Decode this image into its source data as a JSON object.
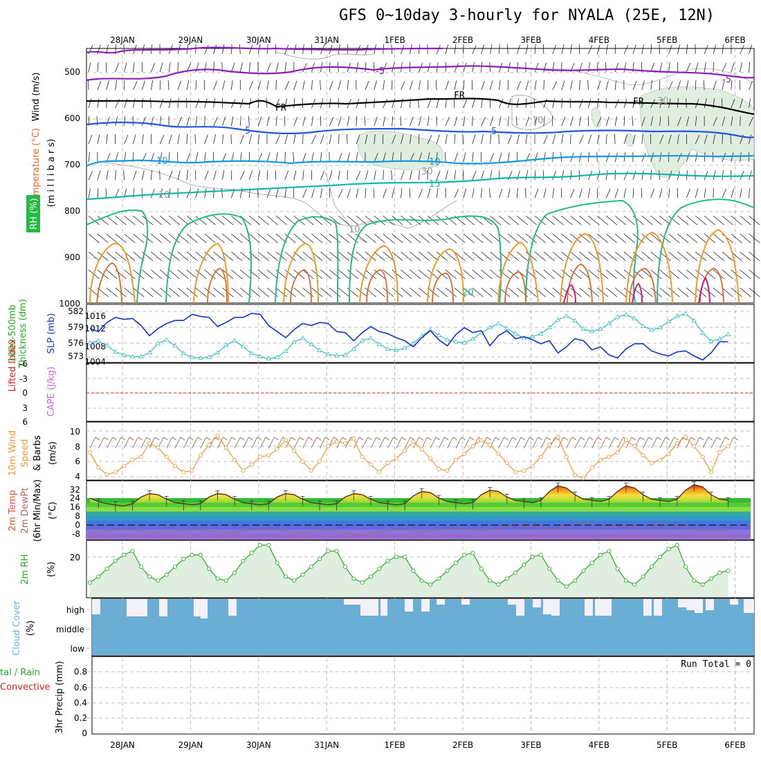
{
  "title": "GFS 0~10day 3-hourly for NYALA (25E, 12N)",
  "colors": {
    "temp_purple": "#8b1fb5",
    "temp_black": "#000000",
    "temp_blue": "#2255dd",
    "temp_lightblue": "#1199dd",
    "temp_teal": "#11b7a5",
    "temp_green": "#22bb88",
    "temp_orange": "#ee9922",
    "temp_darkorange": "#e06622",
    "temp_magenta": "#dd1177",
    "rh_fill": "#dfeedf",
    "thickness_line": "#1133cc",
    "slp_line": "#33bbbb",
    "wind_line": "#ee9933",
    "rh_line": "#22aa22",
    "cloud": "#6aaed6",
    "zero_line": "#dd2222"
  },
  "axes": {
    "dates": [
      "28JAN",
      "29JAN",
      "30JAN",
      "31JAN",
      "1FEB",
      "2FEB",
      "3FEB",
      "4FEB",
      "5FEB",
      "6FEB"
    ]
  },
  "panels": {
    "upper": {
      "y_label_wind": "Wind (m/s)",
      "y_label_temp": "Temperature (°C)",
      "y_label_rh": "RH (%)",
      "y_label_unit": "(m i l l i b a r s)",
      "y_ticks": [
        "500",
        "600",
        "700",
        "800",
        "900",
        "1000"
      ],
      "contour_labels": [
        "-5",
        "FR",
        "FR",
        "FR",
        "5",
        "5",
        "10",
        "10",
        "15",
        "20",
        "-5",
        "10",
        "30",
        "10",
        "30",
        "10"
      ]
    },
    "thickness": {
      "label_a": "1000-500mb",
      "label_b": "Thickness (dm)",
      "label_c": "SLP (mb)",
      "ticks_left": [
        "582",
        "579",
        "576",
        "573"
      ],
      "ticks_right": [
        "1016",
        "1012",
        "1008",
        "1004"
      ]
    },
    "cape": {
      "label_a": "Lifted Index",
      "label_b": "CAPE (J/kg)",
      "ticks": [
        "-6",
        "-3",
        "0",
        "3",
        "6"
      ]
    },
    "wind10m": {
      "label_a": "10m Wind",
      "label_b": "Speed",
      "label_c": "& Barbs",
      "label_unit": "(m/s)",
      "ticks": [
        "10",
        "8",
        "6",
        "4"
      ]
    },
    "temp2m": {
      "label_a": "2m Temp",
      "label_b": "2m DewPt",
      "label_c": "(6hr Min/Max)",
      "label_unit": "(°C)",
      "ticks": [
        "32",
        "24",
        "16",
        "8",
        "0",
        "-8"
      ]
    },
    "rh2m": {
      "label_a": "2m RH",
      "label_unit": "(%)",
      "ticks": [
        "20"
      ]
    },
    "cloud": {
      "label_a": "Cloud Cover",
      "label_unit": "(%)",
      "levels": [
        "high",
        "middle",
        "low"
      ]
    },
    "precip": {
      "label_a": "tal / Rain",
      "label_b": "Convective",
      "label_c": "3hr Precip (mm)",
      "run_total": "Run Total = 0",
      "ticks": [
        "0.8",
        "0.6",
        "0.4",
        "0.2",
        "0"
      ]
    }
  },
  "chart_data": [
    {
      "type": "line",
      "name": "thickness",
      "ylabel": "Thickness (dm)",
      "ylim": [
        571,
        583
      ],
      "x_days": [
        0.0,
        0.125,
        0.25,
        0.375,
        0.5,
        0.625,
        0.75,
        0.875,
        1.0,
        1.125,
        1.25,
        1.375,
        1.5,
        1.625,
        1.75,
        1.875,
        2.0,
        2.125,
        2.25,
        2.375,
        2.5,
        2.625,
        2.75,
        2.875,
        3.0,
        3.125,
        3.25,
        3.375,
        3.5,
        3.625,
        3.75,
        3.875,
        4.0,
        4.125,
        4.25,
        4.375,
        4.5,
        4.625,
        4.75,
        4.875,
        5.0,
        5.125,
        5.25,
        5.375,
        5.5,
        5.625,
        5.75,
        5.875,
        6.0,
        6.125,
        6.25,
        6.375,
        6.5,
        6.625,
        6.75,
        6.875,
        7.0,
        7.125,
        7.25,
        7.375,
        7.5,
        7.625,
        7.75,
        7.875,
        8.0,
        8.125,
        8.25,
        8.375,
        8.5,
        8.625,
        8.75,
        8.875,
        9.0,
        9.125,
        9.25,
        9.375
      ],
      "values": [
        578.6,
        578.0,
        579.8,
        580.8,
        580.4,
        580.6,
        579.2,
        577.2,
        578.6,
        579.6,
        580.2,
        580.2,
        581.4,
        581.0,
        580.8,
        579.0,
        579.8,
        580.8,
        580.8,
        581.6,
        581.4,
        579.2,
        578.0,
        576.8,
        578.4,
        579.6,
        579.2,
        579.8,
        579.6,
        578.0,
        577.8,
        576.2,
        577.8,
        579.0,
        578.0,
        577.6,
        576.8,
        576.2,
        575.0,
        576.8,
        578.2,
        576.4,
        575.2,
        577.4,
        578.8,
        577.8,
        578.2,
        575.2,
        577.2,
        578.2,
        576.6,
        577.0,
        576.4,
        575.6,
        576.2,
        573.8,
        575.0,
        576.6,
        576.2,
        574.4,
        575.0,
        573.4,
        572.8,
        574.6,
        575.6,
        575.6,
        574.2,
        573.6,
        573.2,
        574.0,
        574.2,
        573.2,
        572.4,
        573.8,
        576.0,
        576.0
      ]
    },
    {
      "type": "line",
      "name": "slp",
      "ylabel": "SLP (mb)",
      "ylim": [
        1003,
        1017
      ],
      "x_days": [
        0.0,
        0.125,
        0.25,
        0.375,
        0.5,
        0.625,
        0.75,
        0.875,
        1.0,
        1.125,
        1.25,
        1.375,
        1.5,
        1.625,
        1.75,
        1.875,
        2.0,
        2.125,
        2.25,
        2.375,
        2.5,
        2.625,
        2.75,
        2.875,
        3.0,
        3.125,
        3.25,
        3.375,
        3.5,
        3.625,
        3.75,
        3.875,
        4.0,
        4.125,
        4.25,
        4.375,
        4.5,
        4.625,
        4.75,
        4.875,
        5.0,
        5.125,
        5.25,
        5.375,
        5.5,
        5.625,
        5.75,
        5.875,
        6.0,
        6.125,
        6.25,
        6.375,
        6.5,
        6.625,
        6.75,
        6.875,
        7.0,
        7.125,
        7.25,
        7.375,
        7.5,
        7.625,
        7.75,
        7.875,
        8.0,
        8.125,
        8.25,
        8.375,
        8.5,
        8.625,
        8.75,
        8.875,
        9.0,
        9.125,
        9.25,
        9.375
      ],
      "values": [
        1009.0,
        1009.5,
        1008.2,
        1006.6,
        1005.8,
        1005.4,
        1005.4,
        1006.4,
        1008.8,
        1009.8,
        1008.2,
        1006.2,
        1005.2,
        1005.0,
        1005.2,
        1006.4,
        1008.4,
        1009.6,
        1008.0,
        1006.2,
        1005.4,
        1004.8,
        1005.2,
        1006.8,
        1009.2,
        1010.2,
        1008.6,
        1007.0,
        1006.0,
        1005.6,
        1005.8,
        1007.4,
        1009.6,
        1010.2,
        1008.6,
        1007.4,
        1007.0,
        1007.6,
        1008.8,
        1010.8,
        1012.4,
        1011.0,
        1009.8,
        1009.2,
        1009.0,
        1010.0,
        1011.6,
        1013.0,
        1014.0,
        1012.8,
        1011.4,
        1010.2,
        1010.6,
        1011.4,
        1013.0,
        1015.0,
        1016.0,
        1014.8,
        1012.6,
        1012.0,
        1012.6,
        1014.0,
        1015.8,
        1016.4,
        1015.4,
        1013.4,
        1012.4,
        1013.0,
        1014.6,
        1016.0,
        1016.6,
        1014.8,
        1011.6,
        1009.4,
        1010.0,
        1011.2
      ]
    },
    {
      "type": "line",
      "name": "10m wind speed",
      "ylabel": "(m/s)",
      "ylim": [
        3,
        11
      ],
      "x_days": [
        0.0,
        0.125,
        0.25,
        0.375,
        0.5,
        0.625,
        0.75,
        0.875,
        1.0,
        1.125,
        1.25,
        1.375,
        1.5,
        1.625,
        1.75,
        1.875,
        2.0,
        2.125,
        2.25,
        2.375,
        2.5,
        2.625,
        2.75,
        2.875,
        3.0,
        3.125,
        3.25,
        3.375,
        3.5,
        3.625,
        3.75,
        3.875,
        4.0,
        4.125,
        4.25,
        4.375,
        4.5,
        4.625,
        4.75,
        4.875,
        5.0,
        5.125,
        5.25,
        5.375,
        5.5,
        5.625,
        5.75,
        5.875,
        6.0,
        6.125,
        6.25,
        6.375,
        6.5,
        6.625,
        6.75,
        6.875,
        7.0,
        7.125,
        7.25,
        7.375,
        7.5,
        7.625,
        7.75,
        7.875,
        8.0,
        8.125,
        8.25,
        8.375,
        8.5,
        8.625,
        8.75,
        8.875,
        9.0,
        9.125,
        9.25,
        9.375
      ],
      "values": [
        7.2,
        5.2,
        4.3,
        4.6,
        5.4,
        6.2,
        6.6,
        8.4,
        7.8,
        6.6,
        5.4,
        4.6,
        4.8,
        6.8,
        8.2,
        9.4,
        7.8,
        6.2,
        4.8,
        5.6,
        6.6,
        6.8,
        7.6,
        8.8,
        7.4,
        6.0,
        4.8,
        6.0,
        8.0,
        8.6,
        8.4,
        9.0,
        6.6,
        5.6,
        4.6,
        5.8,
        6.4,
        7.4,
        8.6,
        7.6,
        6.4,
        5.0,
        4.8,
        6.2,
        7.0,
        8.0,
        8.8,
        8.2,
        7.0,
        5.8,
        4.6,
        4.8,
        5.4,
        6.6,
        8.2,
        9.2,
        6.6,
        4.2,
        3.8,
        5.2,
        6.2,
        6.6,
        7.2,
        8.8,
        8.0,
        6.8,
        5.8,
        6.2,
        7.0,
        8.4,
        9.2,
        8.0,
        6.6,
        4.6,
        7.2,
        8.0
      ]
    },
    {
      "type": "area",
      "name": "2m temperature",
      "ylabel": "(°C)",
      "ylim": [
        -16,
        38
      ],
      "x_days": [
        0.0,
        0.125,
        0.25,
        0.375,
        0.5,
        0.625,
        0.75,
        0.875,
        1.0,
        1.125,
        1.25,
        1.375,
        1.5,
        1.625,
        1.75,
        1.875,
        2.0,
        2.125,
        2.25,
        2.375,
        2.5,
        2.625,
        2.75,
        2.875,
        3.0,
        3.125,
        3.25,
        3.375,
        3.5,
        3.625,
        3.75,
        3.875,
        4.0,
        4.125,
        4.25,
        4.375,
        4.5,
        4.625,
        4.75,
        4.875,
        5.0,
        5.125,
        5.25,
        5.375,
        5.5,
        5.625,
        5.75,
        5.875,
        6.0,
        6.125,
        6.25,
        6.375,
        6.5,
        6.625,
        6.75,
        6.875,
        7.0,
        7.125,
        7.25,
        7.375,
        7.5,
        7.625,
        7.75,
        7.875,
        8.0,
        8.125,
        8.25,
        8.375,
        8.5,
        8.625,
        8.75,
        8.875,
        9.0,
        9.125,
        9.25,
        9.375
      ],
      "values": [
        24,
        21,
        19,
        18,
        17,
        19,
        25,
        28,
        27,
        23,
        20,
        19,
        18,
        19,
        25,
        28,
        27,
        23,
        20,
        19,
        18,
        19,
        25,
        28,
        27,
        23,
        20,
        19,
        18,
        19,
        25,
        28,
        27,
        23,
        20,
        19,
        18,
        19,
        26,
        30,
        29,
        24,
        21,
        20,
        19,
        20,
        27,
        31,
        30,
        25,
        22,
        21,
        20,
        22,
        30,
        35,
        33,
        27,
        23,
        22,
        21,
        23,
        30,
        35,
        33,
        27,
        23,
        22,
        21,
        23,
        31,
        36,
        34,
        27,
        23,
        22
      ]
    },
    {
      "type": "line",
      "name": "2m dewpoint",
      "ylabel": "(°C)",
      "ylim": [
        -16,
        38
      ],
      "x_days": [
        0.0,
        0.125,
        0.25,
        0.375,
        0.5,
        0.625,
        0.75,
        0.875,
        1.0,
        1.125,
        1.25,
        1.375,
        1.5,
        1.625,
        1.75,
        1.875,
        2.0,
        2.125,
        2.25,
        2.375,
        2.5,
        2.625,
        2.75,
        2.875,
        3.0,
        3.125,
        3.25,
        3.375,
        3.5,
        3.625,
        3.75,
        3.875,
        4.0,
        4.125,
        4.25,
        4.375,
        4.5,
        4.625,
        4.75,
        4.875,
        5.0,
        5.125,
        5.25,
        5.375,
        5.5,
        5.625,
        5.75,
        5.875,
        6.0,
        6.125,
        6.25,
        6.375,
        6.5,
        6.625,
        6.75,
        6.875,
        7.0,
        7.125,
        7.25,
        7.375,
        7.5,
        7.625,
        7.75,
        7.875,
        8.0,
        8.125,
        8.25,
        8.375,
        8.5,
        8.625,
        8.75,
        8.875,
        9.0,
        9.125,
        9.25,
        9.375
      ],
      "values": [
        -7,
        -6,
        -5,
        -4,
        -4,
        -4,
        -5,
        -6,
        -7,
        -6,
        -5,
        -5,
        -4,
        -4,
        -5,
        -6,
        -7,
        -6,
        -5,
        -4,
        -4,
        -4,
        -4,
        -5,
        -7,
        -7,
        -6,
        -5,
        -4,
        -5,
        -7,
        -8,
        -9,
        -7,
        -6,
        -5,
        -4,
        -4,
        -5,
        -6,
        -5,
        -4,
        -3,
        -3,
        -3,
        -4,
        -5,
        -4,
        -3,
        -1,
        0,
        -1,
        -1,
        -2,
        -4,
        -3,
        -1,
        1,
        2,
        1,
        0,
        -1,
        -2,
        -2,
        -1,
        0,
        1,
        1,
        0,
        -1,
        -2,
        -4,
        -5,
        -5,
        -5,
        -5
      ]
    },
    {
      "type": "area",
      "name": "2m RH",
      "ylabel": "(%)",
      "ylim": [
        0,
        35
      ],
      "x_days": [
        0.0,
        0.125,
        0.25,
        0.375,
        0.5,
        0.625,
        0.75,
        0.875,
        1.0,
        1.125,
        1.25,
        1.375,
        1.5,
        1.625,
        1.75,
        1.875,
        2.0,
        2.125,
        2.25,
        2.375,
        2.5,
        2.625,
        2.75,
        2.875,
        3.0,
        3.125,
        3.25,
        3.375,
        3.5,
        3.625,
        3.75,
        3.875,
        4.0,
        4.125,
        4.25,
        4.375,
        4.5,
        4.625,
        4.75,
        4.875,
        5.0,
        5.125,
        5.25,
        5.375,
        5.5,
        5.625,
        5.75,
        5.875,
        6.0,
        6.125,
        6.25,
        6.375,
        6.5,
        6.625,
        6.75,
        6.875,
        7.0,
        7.125,
        7.25,
        7.375,
        7.5,
        7.625,
        7.75,
        7.875,
        8.0,
        8.125,
        8.25,
        8.375,
        8.5,
        8.625,
        8.75,
        8.875,
        9.0,
        9.125,
        9.25,
        9.375
      ],
      "values": [
        7,
        10,
        14,
        18,
        21,
        23,
        15,
        10,
        8,
        11,
        15,
        19,
        21,
        21,
        14,
        9,
        8,
        12,
        18,
        22,
        26,
        26,
        17,
        10,
        8,
        11,
        15,
        19,
        23,
        23,
        15,
        9,
        7,
        10,
        14,
        18,
        20,
        20,
        13,
        8,
        6,
        9,
        13,
        17,
        21,
        22,
        14,
        8,
        6,
        9,
        12,
        16,
        20,
        21,
        14,
        8,
        5,
        8,
        13,
        17,
        21,
        23,
        14,
        8,
        6,
        10,
        15,
        20,
        24,
        26,
        15,
        8,
        6,
        9,
        12,
        13
      ]
    }
  ]
}
